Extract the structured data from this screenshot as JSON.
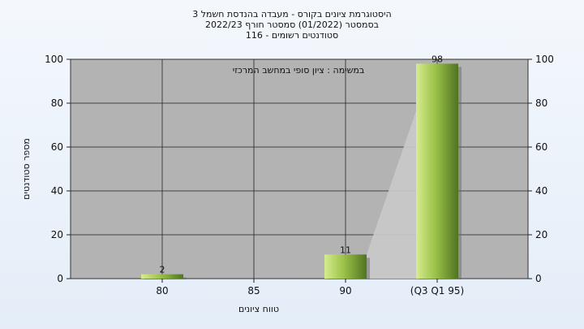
{
  "chart_data": {
    "type": "bar",
    "title_lines": [
      "היסטוגרמת ציונים בקורס - מעבדה בהנדסת חשמל 3",
      "בסמסטר  (01/2022)  סמסטר חורף  2022/23",
      "סטודנטים רשומים - 116"
    ],
    "annotation": "במשימה : ציון סופי במחשב המרכזי",
    "categories": [
      "80",
      "85",
      "90",
      "(Q3 Q1 95)"
    ],
    "values": [
      2,
      0,
      11,
      98
    ],
    "data_labels": [
      "2",
      "",
      "11",
      "98"
    ],
    "ylabel": "מספר סטודנטים",
    "xlabel": "טווח ציונים",
    "ylim": [
      0,
      100
    ],
    "yticks": [
      0,
      20,
      40,
      60,
      80,
      100
    ],
    "grid": true,
    "colors": {
      "plot_bg": "#b3b3b3",
      "bar_light": "#d6ec8e",
      "bar_dark": "#4f7420",
      "shade": "#c9c9c9"
    }
  }
}
